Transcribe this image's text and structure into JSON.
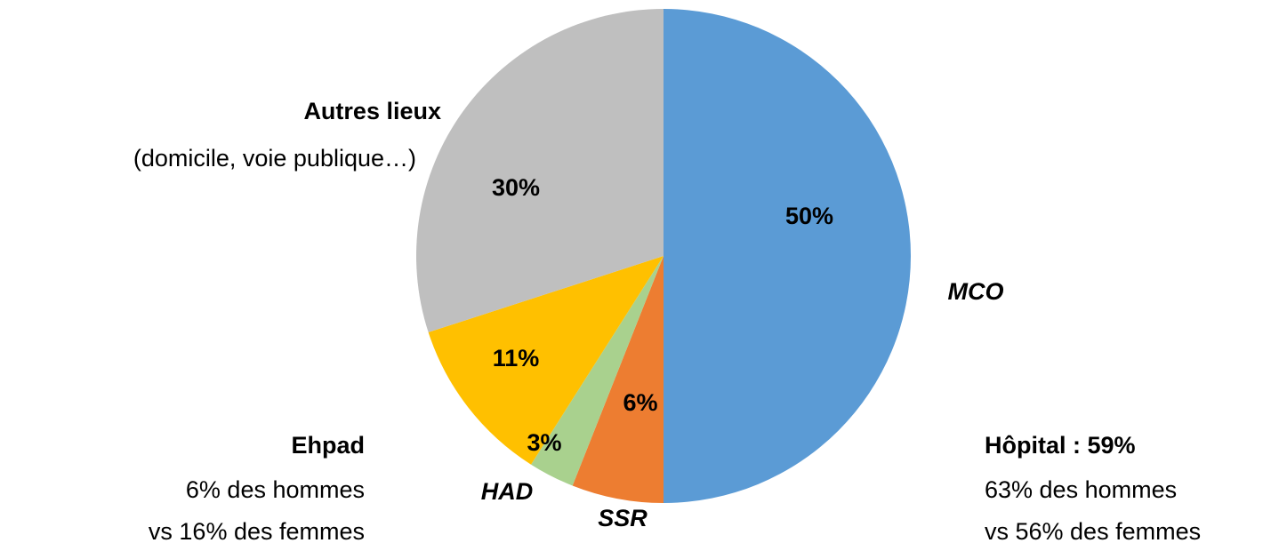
{
  "chart_data": {
    "type": "pie",
    "categories": [
      "MCO",
      "SSR",
      "HAD",
      "Ehpad",
      "Autres lieux"
    ],
    "values": [
      50,
      6,
      3,
      11,
      30
    ],
    "value_labels": [
      "50%",
      "6%",
      "3%",
      "11%",
      "30%"
    ],
    "colors": [
      "#5b9bd5",
      "#ed7d31",
      "#a9d18e",
      "#ffc000",
      "#bfbfbf"
    ],
    "annotations": [
      "(domicile, voie publique…)",
      "6% des hommes",
      "vs 16% des femmes",
      "Hôpital : 59%",
      "63% des hommes",
      "vs 56% des femmes"
    ]
  }
}
